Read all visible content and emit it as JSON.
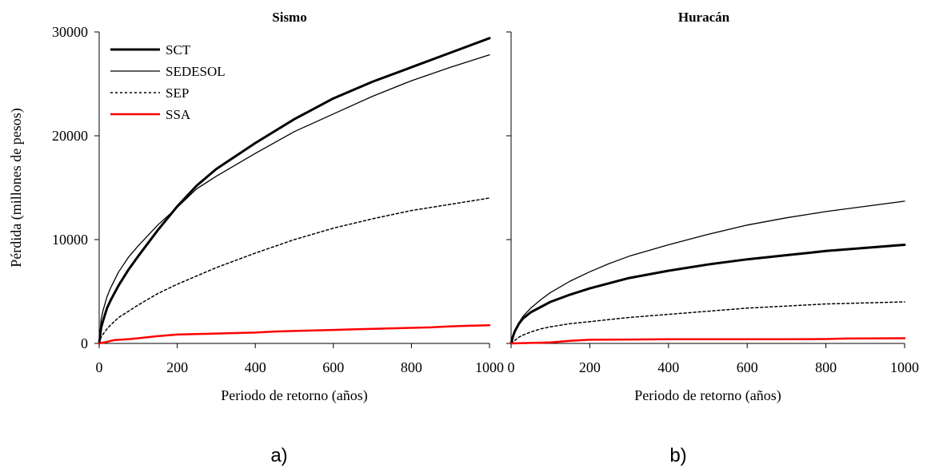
{
  "chart_data": [
    {
      "type": "line",
      "title": "Sismo",
      "xlabel": "Periodo de retorno (años)",
      "ylabel": "Pérdida (millones de pesos)",
      "panel_label": "a)",
      "xlim": [
        0,
        1000
      ],
      "ylim": [
        0,
        30000
      ],
      "xticks": [
        0,
        200,
        400,
        600,
        800,
        1000
      ],
      "yticks": [
        0,
        10000,
        20000,
        30000
      ],
      "grid": false,
      "legend_position": "top-left",
      "series": [
        {
          "name": "SCT",
          "style": "thick-solid",
          "color": "#000000",
          "x": [
            0,
            5,
            10,
            20,
            30,
            50,
            75,
            100,
            150,
            200,
            250,
            300,
            400,
            500,
            600,
            700,
            800,
            900,
            1000
          ],
          "y": [
            0,
            1500,
            2200,
            3400,
            4200,
            5600,
            7100,
            8400,
            10900,
            13200,
            15200,
            16800,
            19300,
            21600,
            23600,
            25200,
            26600,
            28000,
            29400
          ]
        },
        {
          "name": "SEDESOL",
          "style": "thin-solid",
          "color": "#000000",
          "x": [
            0,
            5,
            10,
            20,
            30,
            50,
            75,
            100,
            150,
            200,
            250,
            300,
            400,
            500,
            600,
            700,
            800,
            900,
            1000
          ],
          "y": [
            0,
            2300,
            3200,
            4500,
            5400,
            6900,
            8300,
            9400,
            11400,
            13100,
            14900,
            16100,
            18300,
            20400,
            22100,
            23800,
            25300,
            26600,
            27800
          ]
        },
        {
          "name": "SEP",
          "style": "dotted",
          "color": "#000000",
          "x": [
            0,
            5,
            10,
            20,
            30,
            50,
            75,
            100,
            150,
            200,
            300,
            400,
            500,
            600,
            700,
            800,
            900,
            1000
          ],
          "y": [
            0,
            600,
            900,
            1400,
            1800,
            2500,
            3100,
            3700,
            4800,
            5700,
            7300,
            8700,
            10000,
            11100,
            12000,
            12800,
            13400,
            14000
          ]
        },
        {
          "name": "SSA",
          "style": "red-solid",
          "color": "#ff0000",
          "x": [
            0,
            10,
            20,
            30,
            40,
            60,
            80,
            100,
            150,
            200,
            250,
            300,
            350,
            400,
            450,
            500,
            550,
            600,
            650,
            700,
            750,
            800,
            850,
            900,
            950,
            1000
          ],
          "y": [
            0,
            80,
            150,
            250,
            330,
            380,
            420,
            500,
            700,
            850,
            900,
            950,
            1000,
            1050,
            1150,
            1200,
            1250,
            1300,
            1350,
            1400,
            1450,
            1500,
            1550,
            1650,
            1700,
            1750
          ]
        }
      ]
    },
    {
      "type": "line",
      "title": "Huracán",
      "xlabel": "Periodo de retorno (años)",
      "ylabel": "",
      "panel_label": "b)",
      "xlim": [
        0,
        1000
      ],
      "ylim": [
        0,
        30000
      ],
      "xticks": [
        0,
        200,
        400,
        600,
        800,
        1000
      ],
      "yticks": [
        0,
        10000,
        20000,
        30000
      ],
      "grid": false,
      "series": [
        {
          "name": "SCT",
          "style": "thick-solid",
          "color": "#000000",
          "x": [
            0,
            5,
            10,
            20,
            30,
            50,
            75,
            100,
            150,
            200,
            250,
            300,
            400,
            500,
            600,
            700,
            800,
            900,
            1000
          ],
          "y": [
            0,
            700,
            1200,
            1900,
            2400,
            3000,
            3500,
            4000,
            4700,
            5300,
            5800,
            6300,
            7000,
            7600,
            8100,
            8500,
            8900,
            9200,
            9500
          ]
        },
        {
          "name": "SEDESOL",
          "style": "thin-solid",
          "color": "#000000",
          "x": [
            0,
            5,
            10,
            20,
            30,
            50,
            75,
            100,
            150,
            200,
            250,
            300,
            400,
            500,
            600,
            700,
            800,
            900,
            1000
          ],
          "y": [
            0,
            800,
            1300,
            2000,
            2600,
            3400,
            4200,
            4900,
            6000,
            6900,
            7700,
            8400,
            9500,
            10500,
            11400,
            12100,
            12700,
            13200,
            13700
          ]
        },
        {
          "name": "SEP",
          "style": "dotted",
          "color": "#000000",
          "x": [
            0,
            5,
            10,
            20,
            30,
            50,
            75,
            100,
            150,
            200,
            300,
            400,
            500,
            600,
            700,
            800,
            900,
            1000
          ],
          "y": [
            0,
            150,
            300,
            600,
            800,
            1100,
            1400,
            1600,
            1900,
            2100,
            2500,
            2800,
            3100,
            3400,
            3600,
            3800,
            3900,
            4000
          ]
        },
        {
          "name": "SSA",
          "style": "red-solid",
          "color": "#ff0000",
          "x": [
            0,
            50,
            100,
            150,
            200,
            300,
            400,
            500,
            600,
            700,
            800,
            850,
            900,
            1000
          ],
          "y": [
            0,
            50,
            100,
            250,
            350,
            380,
            400,
            400,
            400,
            400,
            420,
            470,
            480,
            500
          ]
        }
      ]
    }
  ]
}
